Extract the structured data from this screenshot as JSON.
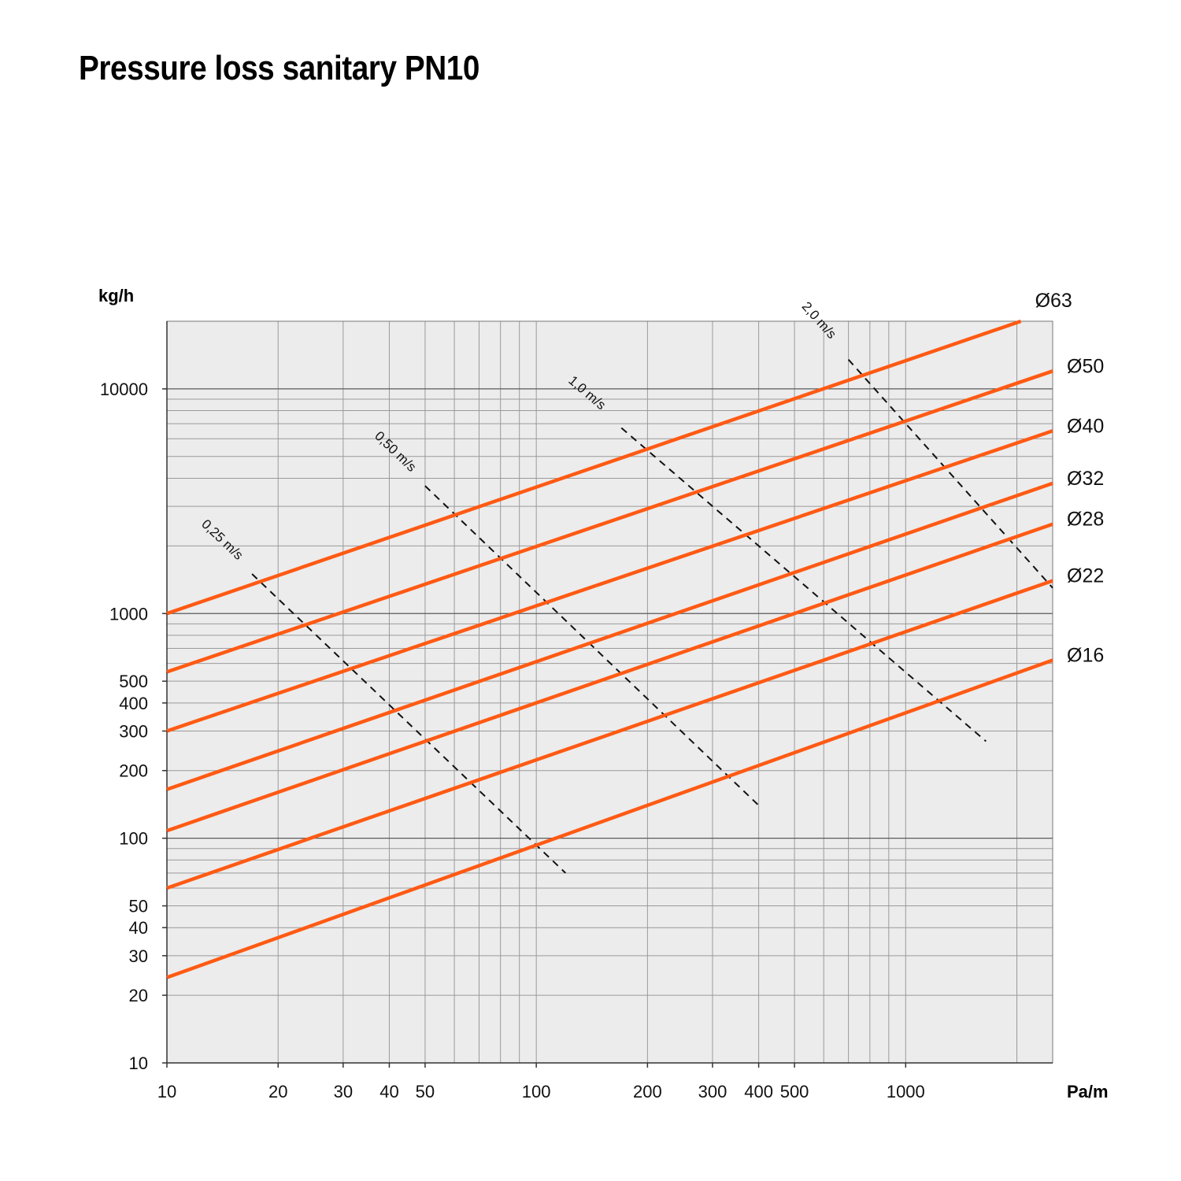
{
  "title": "Pressure loss sanitary PN10",
  "chart_data": {
    "type": "line",
    "title": "Pressure loss sanitary PN10",
    "xlabel": "Pa/m",
    "ylabel": "kg/h",
    "xscale": "log",
    "yscale": "log",
    "xlim": [
      10,
      2500
    ],
    "ylim": [
      10,
      20000
    ],
    "grid": true,
    "xticks": [
      "10",
      "20",
      "30",
      "40",
      "50",
      "100",
      "200",
      "300",
      "400",
      "500",
      "1000"
    ],
    "xtick_values": [
      10,
      20,
      30,
      40,
      50,
      100,
      200,
      300,
      400,
      500,
      1000
    ],
    "yticks": [
      "10",
      "20",
      "30",
      "40",
      "50",
      "100",
      "200",
      "300",
      "400",
      "500",
      "1000",
      "10000"
    ],
    "ytick_values": [
      10,
      20,
      30,
      40,
      50,
      100,
      200,
      300,
      400,
      500,
      1000,
      10000
    ],
    "series_color": "#ff5a14",
    "velocity_color": "#111111",
    "series": [
      {
        "name": "Ø63",
        "points": [
          [
            10,
            1000
          ],
          [
            2050,
            20000
          ]
        ]
      },
      {
        "name": "Ø50",
        "points": [
          [
            10,
            550
          ],
          [
            2500,
            12000
          ]
        ]
      },
      {
        "name": "Ø40",
        "points": [
          [
            10,
            300
          ],
          [
            2500,
            6500
          ]
        ]
      },
      {
        "name": "Ø32",
        "points": [
          [
            10,
            165
          ],
          [
            2500,
            3800
          ]
        ]
      },
      {
        "name": "Ø28",
        "points": [
          [
            10,
            108
          ],
          [
            2500,
            2500
          ]
        ]
      },
      {
        "name": "Ø22",
        "points": [
          [
            10,
            60
          ],
          [
            2500,
            1400
          ]
        ]
      },
      {
        "name": "Ø16",
        "points": [
          [
            10,
            24
          ],
          [
            2500,
            620
          ]
        ]
      }
    ],
    "velocity_lines": [
      {
        "name": "0,25 m/s",
        "points": [
          [
            17,
            1500
          ],
          [
            120,
            70
          ]
        ]
      },
      {
        "name": "0,50 m/s",
        "points": [
          [
            50,
            3700
          ],
          [
            400,
            140
          ]
        ]
      },
      {
        "name": "1,0 m/s",
        "points": [
          [
            170,
            6700
          ],
          [
            1650,
            270
          ]
        ]
      },
      {
        "name": "2,0 m/s",
        "points": [
          [
            700,
            13500
          ],
          [
            2500,
            1300
          ]
        ]
      }
    ]
  }
}
